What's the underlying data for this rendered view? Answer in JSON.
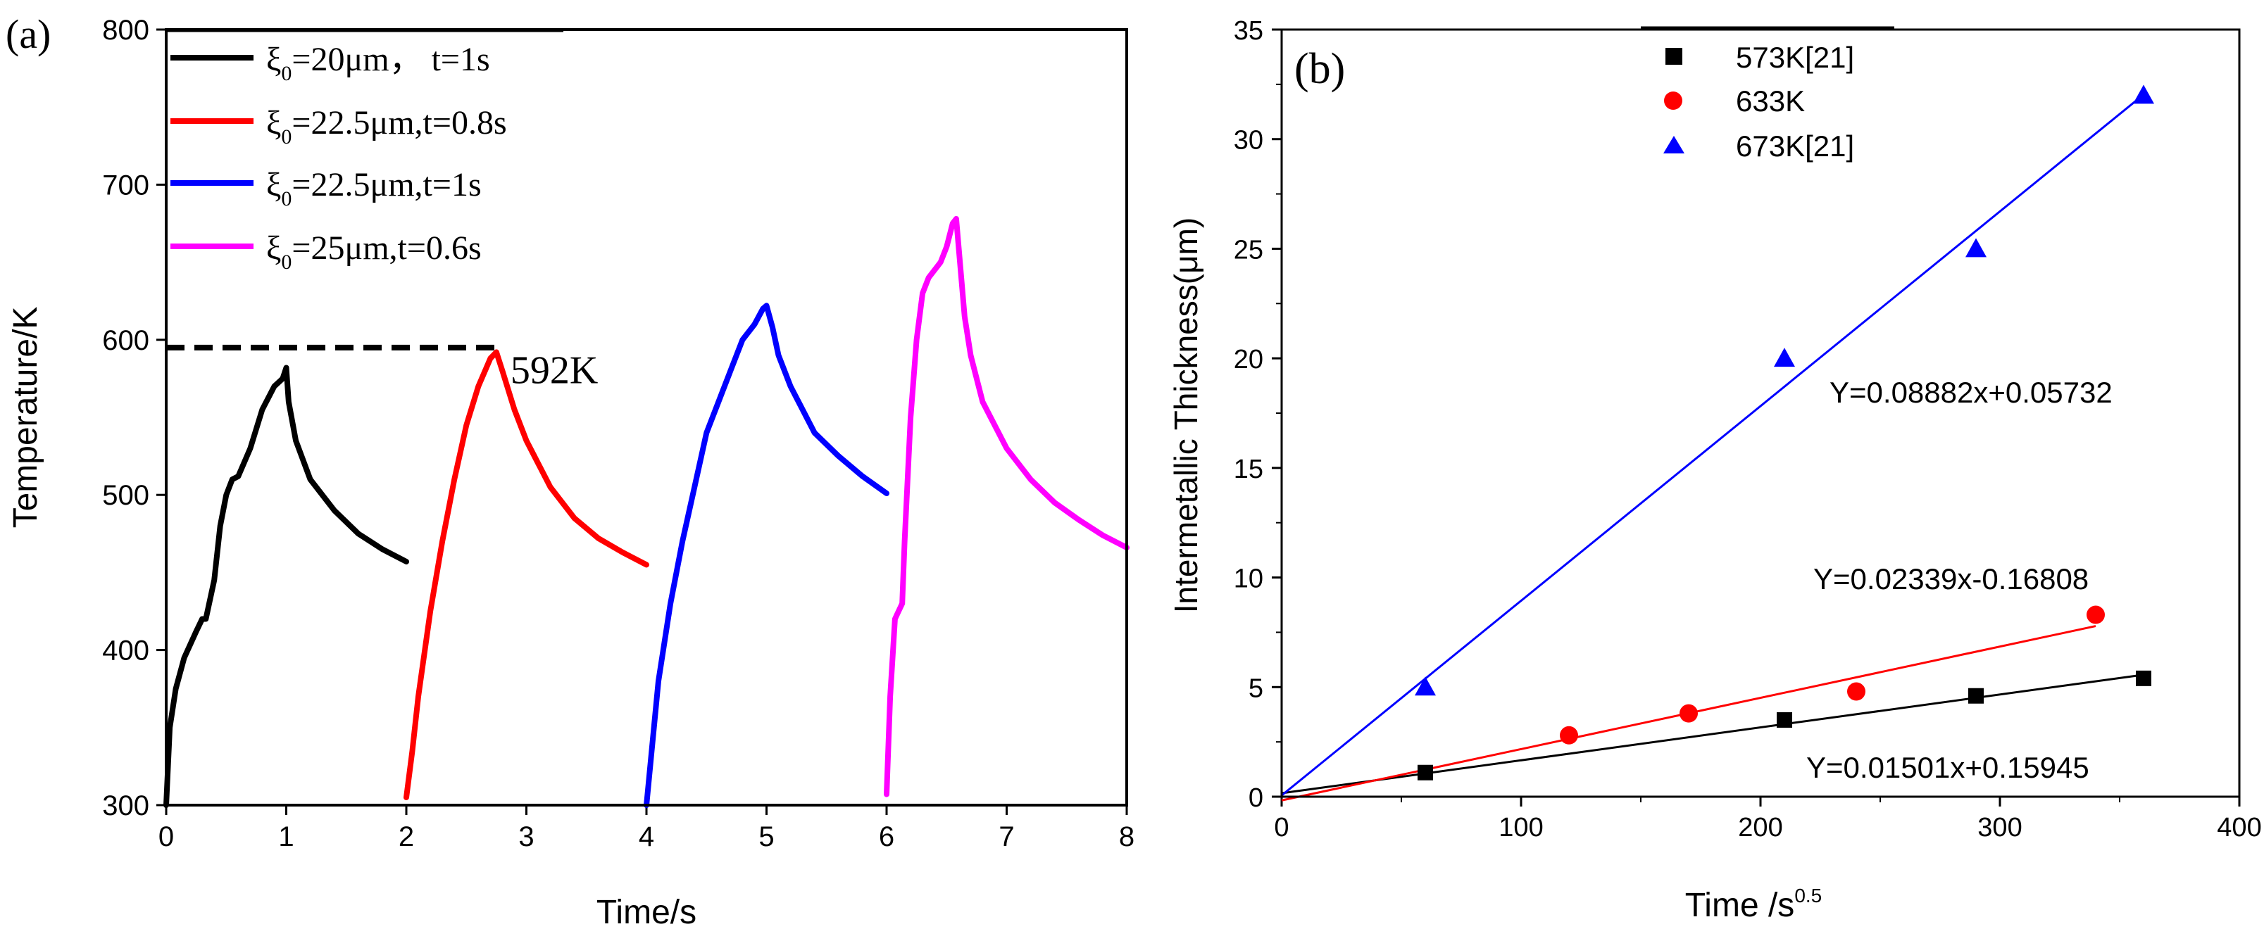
{
  "chart_data": [
    {
      "panel_label": "(a)",
      "type": "line",
      "xlabel": "Time/s",
      "ylabel": "Temperature/K",
      "xlim": [
        0,
        8
      ],
      "ylim": [
        300,
        800
      ],
      "xticks": [
        "0",
        "1",
        "2",
        "3",
        "4",
        "5",
        "6",
        "7",
        "8"
      ],
      "yticks": [
        "300",
        "400",
        "500",
        "600",
        "700",
        "800"
      ],
      "legend": [
        {
          "sym": "ξ",
          "sub": "0",
          "rest": "=20μm，  t=1s",
          "color": "#000000"
        },
        {
          "sym": "ξ",
          "sub": "0",
          "rest": "=22.5μm,t=0.8s",
          "color": "#ff0000"
        },
        {
          "sym": "ξ",
          "sub": "0",
          "rest": "=22.5μm,t=1s",
          "color": "#0000ff"
        },
        {
          "sym": "ξ",
          "sub": "0",
          "rest": "=25μm,t=0.6s",
          "color": "#ff00ff"
        }
      ],
      "annotation": {
        "text": "592K",
        "x": 2.75,
        "y": 592
      },
      "series": [
        {
          "name": "ξ0=20μm, t=1s",
          "color": "#000000",
          "x": [
            0,
            0.03,
            0.08,
            0.15,
            0.25,
            0.3,
            0.33,
            0.4,
            0.45,
            0.5,
            0.55,
            0.6,
            0.7,
            0.8,
            0.9,
            0.97,
            1.0,
            1.02,
            1.08,
            1.2,
            1.4,
            1.6,
            1.8,
            2.0
          ],
          "y": [
            300,
            350,
            375,
            395,
            412,
            420,
            420,
            445,
            480,
            500,
            510,
            512,
            530,
            555,
            570,
            575,
            582,
            560,
            535,
            510,
            490,
            475,
            465,
            457
          ]
        },
        {
          "name": "ξ0=22.5μm, t=0.8s",
          "color": "#ff0000",
          "x": [
            2.0,
            2.05,
            2.1,
            2.2,
            2.3,
            2.4,
            2.5,
            2.6,
            2.7,
            2.75,
            2.8,
            2.9,
            3.0,
            3.2,
            3.4,
            3.6,
            3.8,
            4.0
          ],
          "y": [
            305,
            335,
            370,
            425,
            470,
            510,
            545,
            570,
            588,
            592,
            580,
            555,
            535,
            505,
            485,
            472,
            463,
            455
          ]
        },
        {
          "name": "ξ0=22.5μm, t=1s",
          "color": "#0000ff",
          "x": [
            4.0,
            4.05,
            4.1,
            4.2,
            4.3,
            4.4,
            4.5,
            4.6,
            4.7,
            4.8,
            4.9,
            4.97,
            5.0,
            5.05,
            5.1,
            5.2,
            5.3,
            5.4,
            5.6,
            5.8,
            6.0
          ],
          "y": [
            300,
            340,
            380,
            430,
            470,
            505,
            540,
            560,
            580,
            600,
            610,
            620,
            622,
            608,
            590,
            570,
            555,
            540,
            525,
            512,
            501
          ]
        },
        {
          "name": "ξ0=25μm, t=0.6s",
          "color": "#ff00ff",
          "x": [
            6.0,
            6.03,
            6.07,
            6.1,
            6.13,
            6.15,
            6.2,
            6.25,
            6.3,
            6.35,
            6.4,
            6.45,
            6.5,
            6.55,
            6.58,
            6.6,
            6.65,
            6.7,
            6.8,
            7.0,
            7.2,
            7.4,
            7.6,
            7.8,
            8.0
          ],
          "y": [
            307,
            370,
            420,
            425,
            430,
            470,
            550,
            600,
            630,
            640,
            645,
            650,
            660,
            675,
            678,
            660,
            615,
            590,
            560,
            530,
            510,
            495,
            484,
            474,
            466
          ]
        }
      ],
      "reference_line": {
        "x": [
          0,
          2.75
        ],
        "y": [
          595,
          595
        ],
        "style": "dashed",
        "color": "#000000"
      }
    },
    {
      "panel_label": "(b)",
      "type": "scatter",
      "xlabel": "Time /s",
      "xlabel_sup": "0.5",
      "ylabel": "Intermetallic Thickness(μm)",
      "xlim": [
        0,
        400
      ],
      "ylim": [
        0,
        35
      ],
      "xticks": [
        "0",
        "100",
        "200",
        "300",
        "400"
      ],
      "yticks": [
        "0",
        "5",
        "10",
        "15",
        "20",
        "25",
        "30",
        "35"
      ],
      "legend": [
        {
          "label": "573K[21]",
          "marker": "square",
          "color": "#000000"
        },
        {
          "label": "633K",
          "marker": "circle",
          "color": "#ff0000"
        },
        {
          "label": "673K[21]",
          "marker": "triangle",
          "color": "#0000ff"
        }
      ],
      "series": [
        {
          "name": "573K[21]",
          "marker": "square",
          "color": "#000000",
          "x": [
            60,
            210,
            290,
            360
          ],
          "y": [
            1.1,
            3.5,
            4.6,
            5.4
          ],
          "fit": {
            "slope": 0.01501,
            "intercept": 0.15945,
            "label": "Y=0.01501x+0.15945",
            "x_range": [
              0,
              360
            ]
          }
        },
        {
          "name": "633K",
          "marker": "circle",
          "color": "#ff0000",
          "x": [
            120,
            170,
            240,
            340
          ],
          "y": [
            2.8,
            3.8,
            4.8,
            8.3
          ],
          "fit": {
            "slope": 0.02339,
            "intercept": -0.16808,
            "label": "Y=0.02339x-0.16808",
            "x_range": [
              0,
              340
            ]
          }
        },
        {
          "name": "673K[21]",
          "marker": "triangle",
          "color": "#0000ff",
          "x": [
            60,
            210,
            290,
            360
          ],
          "y": [
            5.0,
            20.0,
            25.0,
            32.0
          ],
          "fit": {
            "slope": 0.08882,
            "intercept": 0.05732,
            "label": "Y=0.08882x+0.05732",
            "x_range": [
              0,
              360
            ]
          }
        }
      ]
    }
  ]
}
